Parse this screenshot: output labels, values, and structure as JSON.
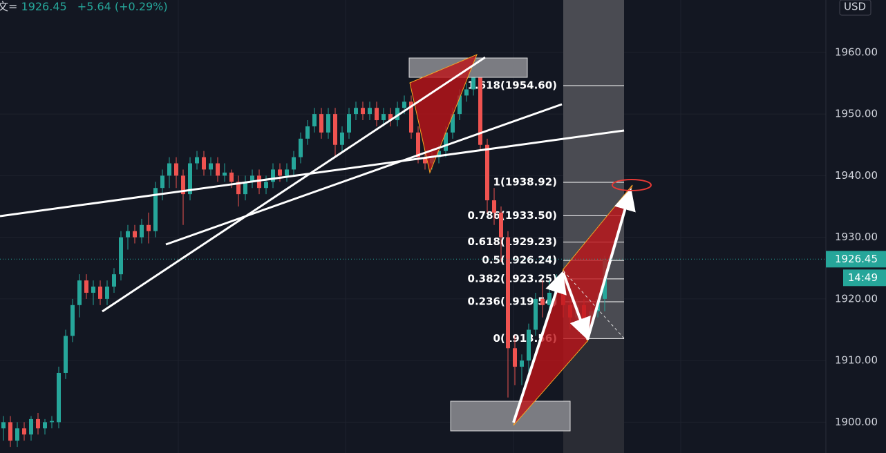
{
  "chart_data": {
    "type": "candlestick",
    "header": {
      "symbol": "文=",
      "price": "1926.45",
      "change": "+5.64 (+0.29%)"
    },
    "currency": "USD",
    "ylim": [
      1895,
      1968.5
    ],
    "yticks": [
      {
        "value": 1900,
        "label": "1900.00"
      },
      {
        "value": 1910,
        "label": "1910.00"
      },
      {
        "value": 1920,
        "label": "1920.00"
      },
      {
        "value": 1930,
        "label": "1930.00"
      },
      {
        "value": 1940,
        "label": "1940.00"
      },
      {
        "value": 1950,
        "label": "1950.00"
      },
      {
        "value": 1960,
        "label": "1960.00"
      }
    ],
    "up_color": "#26a69a",
    "down_color": "#ef5350",
    "last_price": {
      "value": 1926.45,
      "label": "1926.45"
    },
    "countdown": "14:49",
    "fib_levels": [
      {
        "value": 1954.6,
        "label": "1.618(1954.60)"
      },
      {
        "value": 1938.92,
        "label": "1(1938.92)"
      },
      {
        "value": 1933.5,
        "label": "0.786(1933.50)"
      },
      {
        "value": 1929.23,
        "label": "0.618(1929.23)"
      },
      {
        "value": 1926.24,
        "label": "0.5(1926.24)"
      },
      {
        "value": 1923.25,
        "label": "0.382(1923.25)"
      },
      {
        "value": 1919.54,
        "label": "0.236(1919.54)"
      },
      {
        "value": 1913.56,
        "label": "0(1913.56)"
      }
    ],
    "candles": [
      [
        1899,
        1901,
        1897,
        1900
      ],
      [
        1900,
        1901,
        1896,
        1897
      ],
      [
        1897,
        1900,
        1896,
        1899
      ],
      [
        1899,
        1900,
        1897,
        1898
      ],
      [
        1898,
        1901,
        1897,
        1900.5
      ],
      [
        1900.5,
        1901.5,
        1898,
        1899
      ],
      [
        1899,
        1900.5,
        1898,
        1900
      ],
      [
        1900,
        1901,
        1899,
        1900.2
      ],
      [
        1900,
        1909,
        1899,
        1908
      ],
      [
        1908,
        1915,
        1907,
        1914
      ],
      [
        1914,
        1920,
        1913,
        1919
      ],
      [
        1919,
        1924,
        1917,
        1923
      ],
      [
        1923,
        1924,
        1920,
        1921
      ],
      [
        1921,
        1923,
        1919,
        1922
      ],
      [
        1922,
        1923,
        1919,
        1920
      ],
      [
        1920,
        1923,
        1919,
        1922
      ],
      [
        1922,
        1925,
        1921,
        1924
      ],
      [
        1924,
        1931,
        1923,
        1930
      ],
      [
        1930,
        1932,
        1928,
        1931
      ],
      [
        1931,
        1932,
        1929,
        1930
      ],
      [
        1930,
        1933,
        1929,
        1932
      ],
      [
        1932,
        1934,
        1929,
        1931
      ],
      [
        1931,
        1939,
        1930,
        1938
      ],
      [
        1938,
        1941,
        1936,
        1940
      ],
      [
        1940,
        1943,
        1938,
        1942
      ],
      [
        1942,
        1943,
        1938,
        1940
      ],
      [
        1940,
        1941,
        1932,
        1937
      ],
      [
        1937,
        1943,
        1936,
        1942
      ],
      [
        1942,
        1944,
        1941,
        1943
      ],
      [
        1943,
        1944,
        1940,
        1941
      ],
      [
        1941,
        1943,
        1940,
        1942
      ],
      [
        1942,
        1943,
        1939,
        1940
      ],
      [
        1940,
        1942,
        1939,
        1940.5
      ],
      [
        1940.5,
        1941,
        1938,
        1939
      ],
      [
        1939,
        1940,
        1935,
        1937
      ],
      [
        1937,
        1940,
        1936,
        1939
      ],
      [
        1939,
        1941,
        1938,
        1940
      ],
      [
        1940,
        1941,
        1937,
        1938
      ],
      [
        1938,
        1940,
        1937,
        1939
      ],
      [
        1939,
        1942,
        1938,
        1941
      ],
      [
        1941,
        1942,
        1939,
        1940
      ],
      [
        1940,
        1942,
        1939,
        1941
      ],
      [
        1941,
        1944,
        1940,
        1943
      ],
      [
        1943,
        1947,
        1942,
        1946
      ],
      [
        1946,
        1949,
        1945,
        1948
      ],
      [
        1948,
        1951,
        1947,
        1950
      ],
      [
        1950,
        1951,
        1946,
        1947
      ],
      [
        1947,
        1951,
        1946,
        1950
      ],
      [
        1950,
        1951,
        1943,
        1945
      ],
      [
        1945,
        1948,
        1944,
        1947
      ],
      [
        1947,
        1951,
        1946,
        1950
      ],
      [
        1950,
        1952,
        1949,
        1951
      ],
      [
        1951,
        1952,
        1949,
        1950
      ],
      [
        1950,
        1952,
        1949,
        1951
      ],
      [
        1951,
        1952,
        1948,
        1949
      ],
      [
        1949,
        1951,
        1948,
        1950
      ],
      [
        1950,
        1951,
        1948,
        1949
      ],
      [
        1949,
        1952,
        1948,
        1951
      ],
      [
        1951,
        1953,
        1950,
        1952
      ],
      [
        1952,
        1953,
        1946,
        1947
      ],
      [
        1947,
        1948,
        1942,
        1943
      ],
      [
        1943,
        1944,
        1941,
        1942
      ],
      [
        1942,
        1944,
        1941,
        1943
      ],
      [
        1943,
        1945,
        1942,
        1944
      ],
      [
        1944,
        1948,
        1943,
        1947
      ],
      [
        1947,
        1951,
        1946,
        1950
      ],
      [
        1950,
        1954,
        1949,
        1953
      ],
      [
        1953,
        1955,
        1952,
        1954
      ],
      [
        1954,
        1958,
        1953,
        1956
      ],
      [
        1956,
        1957,
        1944,
        1945
      ],
      [
        1945,
        1946,
        1934,
        1936
      ],
      [
        1936,
        1938,
        1932,
        1934
      ],
      [
        1934,
        1935,
        1926,
        1930
      ],
      [
        1930,
        1931,
        1904,
        1912
      ],
      [
        1912,
        1914,
        1906,
        1909
      ],
      [
        1909,
        1911,
        1906,
        1910
      ],
      [
        1910,
        1916,
        1908,
        1915
      ],
      [
        1915,
        1921,
        1914,
        1920
      ],
      [
        1920,
        1923,
        1917,
        1919
      ],
      [
        1919,
        1923,
        1917,
        1921
      ],
      [
        1921,
        1924,
        1919,
        1923
      ],
      [
        1923,
        1924,
        1917,
        1919
      ],
      [
        1919,
        1920,
        1915,
        1917
      ],
      [
        1917,
        1920,
        1915,
        1919
      ],
      [
        1919,
        1920,
        1914,
        1916
      ],
      [
        1916,
        1919,
        1915,
        1918
      ],
      [
        1918,
        1921,
        1917,
        1920
      ],
      [
        1920,
        1927,
        1918,
        1926.45
      ]
    ]
  }
}
